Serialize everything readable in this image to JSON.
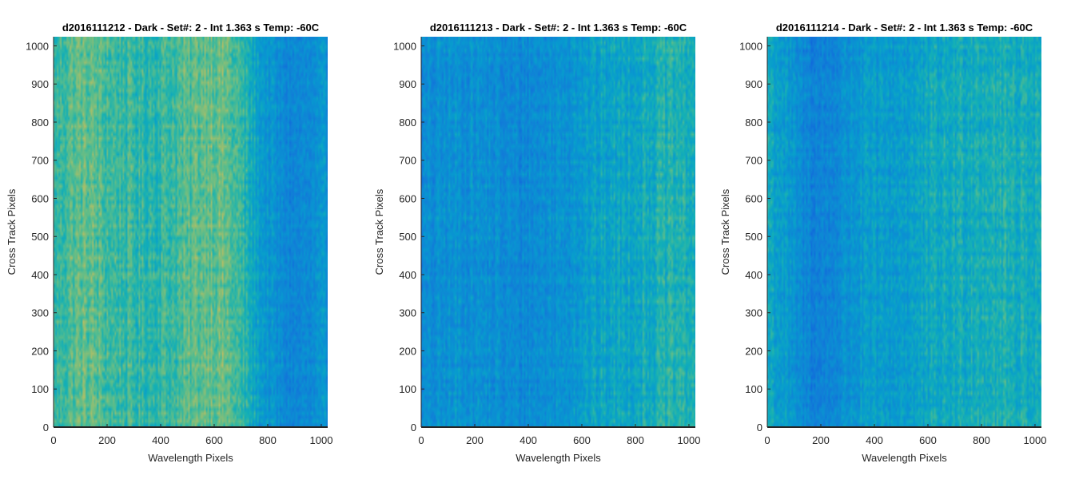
{
  "chart_data": [
    {
      "type": "heatmap",
      "title": "d2016111212 - Dark - Set#: 2 - Int 1.363 s Temp: -60C",
      "xlabel": "Wavelength Pixels",
      "ylabel": "Cross Track Pixels",
      "xlim": [
        0,
        1024
      ],
      "ylim": [
        0,
        1024
      ],
      "xticks": [
        0,
        200,
        400,
        600,
        800,
        1000
      ],
      "yticks": [
        0,
        100,
        200,
        300,
        400,
        500,
        600,
        700,
        800,
        900,
        1000
      ],
      "colormap": "parula",
      "column_profile": {
        "x": [
          0,
          64,
          128,
          192,
          256,
          320,
          384,
          448,
          512,
          576,
          640,
          704,
          768,
          832,
          896,
          960,
          1024
        ],
        "level": [
          0.58,
          0.64,
          0.66,
          0.62,
          0.6,
          0.58,
          0.59,
          0.61,
          0.64,
          0.68,
          0.66,
          0.58,
          0.46,
          0.38,
          0.34,
          0.36,
          0.4
        ]
      }
    },
    {
      "type": "heatmap",
      "title": "d2016111213 - Dark - Set#: 2 - Int 1.363 s Temp: -60C",
      "xlabel": "Wavelength Pixels",
      "ylabel": "Cross Track Pixels",
      "xlim": [
        0,
        1024
      ],
      "ylim": [
        0,
        1024
      ],
      "xticks": [
        0,
        200,
        400,
        600,
        800,
        1000
      ],
      "yticks": [
        0,
        100,
        200,
        300,
        400,
        500,
        600,
        700,
        800,
        900,
        1000
      ],
      "colormap": "parula",
      "column_profile": {
        "x": [
          0,
          64,
          128,
          192,
          256,
          320,
          384,
          448,
          512,
          576,
          640,
          704,
          768,
          832,
          896,
          960,
          1024
        ],
        "level": [
          0.36,
          0.38,
          0.4,
          0.4,
          0.38,
          0.36,
          0.36,
          0.38,
          0.4,
          0.44,
          0.46,
          0.48,
          0.5,
          0.52,
          0.54,
          0.55,
          0.54
        ]
      }
    },
    {
      "type": "heatmap",
      "title": "d2016111214 - Dark - Set#: 2 - Int 1.363 s Temp: -60C",
      "xlabel": "Wavelength Pixels",
      "ylabel": "Cross Track Pixels",
      "xlim": [
        0,
        1024
      ],
      "ylim": [
        0,
        1024
      ],
      "xticks": [
        0,
        200,
        400,
        600,
        800,
        1000
      ],
      "yticks": [
        0,
        100,
        200,
        300,
        400,
        500,
        600,
        700,
        800,
        900,
        1000
      ],
      "colormap": "parula",
      "column_profile": {
        "x": [
          0,
          64,
          128,
          192,
          256,
          320,
          384,
          448,
          512,
          576,
          640,
          704,
          768,
          832,
          896,
          960,
          1024
        ],
        "level": [
          0.52,
          0.44,
          0.36,
          0.32,
          0.36,
          0.42,
          0.44,
          0.44,
          0.46,
          0.48,
          0.5,
          0.52,
          0.54,
          0.55,
          0.54,
          0.53,
          0.52
        ]
      }
    }
  ]
}
